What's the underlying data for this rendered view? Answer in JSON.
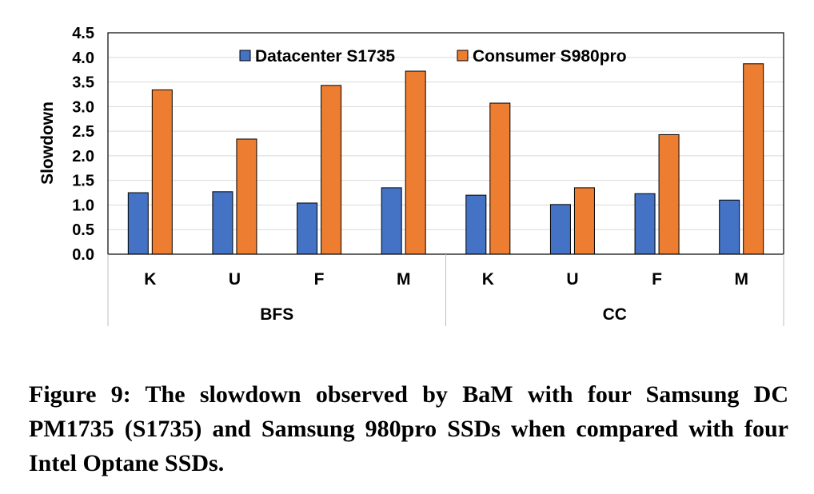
{
  "chart_data": {
    "type": "bar",
    "ylabel": "Slowdown",
    "ylim": [
      0,
      4.5
    ],
    "yticks": [
      "0.0",
      "0.5",
      "1.0",
      "1.5",
      "2.0",
      "2.5",
      "3.0",
      "3.5",
      "4.0",
      "4.5"
    ],
    "grid": true,
    "legend_position": "top",
    "groups": [
      {
        "label": "BFS",
        "categories": [
          "K",
          "U",
          "F",
          "M"
        ]
      },
      {
        "label": "CC",
        "categories": [
          "K",
          "U",
          "F",
          "M"
        ]
      }
    ],
    "series": [
      {
        "name": "Datacenter S1735",
        "color": "#4472C4",
        "values": [
          1.25,
          1.27,
          1.04,
          1.35,
          1.2,
          1.01,
          1.23,
          1.1
        ]
      },
      {
        "name": "Consumer S980pro",
        "color": "#ED7D31",
        "values": [
          3.34,
          2.34,
          3.43,
          3.72,
          3.07,
          1.35,
          2.43,
          3.87
        ]
      }
    ]
  },
  "caption": "Figure 9: The slowdown observed by BaM with four Samsung DC PM1735 (S1735) and Samsung 980pro SSDs when compared with four Intel Optane SSDs."
}
